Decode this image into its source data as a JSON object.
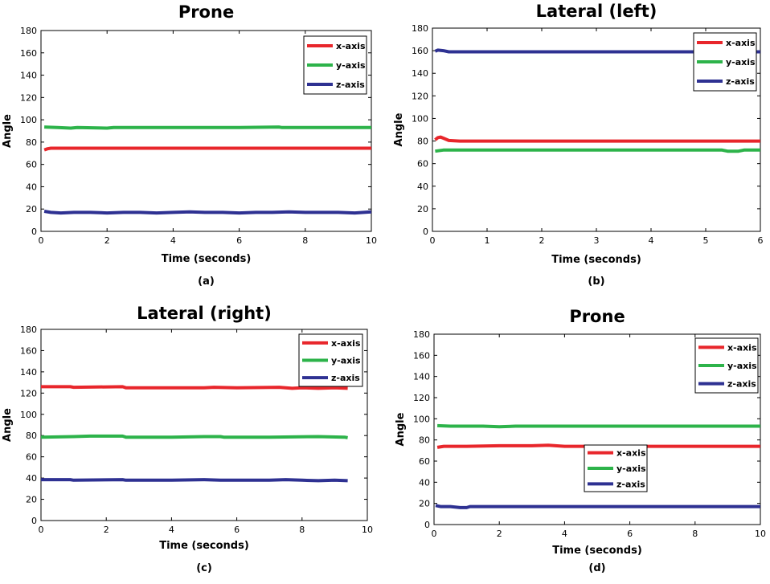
{
  "colors": {
    "x": "#e8262b",
    "y": "#2db34a",
    "z": "#2e3192"
  },
  "chart_data": [
    {
      "type": "line",
      "panel_label": "(a)",
      "title": "Prone",
      "xlabel": "Time (seconds)",
      "ylabel": "Angle",
      "xlim": [
        0,
        10
      ],
      "ylim": [
        0,
        180
      ],
      "xticks": [
        0,
        2,
        4,
        6,
        8,
        10
      ],
      "yticks": [
        0,
        20,
        40,
        60,
        80,
        100,
        120,
        140,
        160,
        180
      ],
      "grid": false,
      "legend": {
        "placement": "top-right",
        "entries": [
          "x-axis",
          "y-axis",
          "z-axis"
        ]
      },
      "series": [
        {
          "name": "x-axis",
          "x": [
            0.1,
            0.2,
            0.3,
            0.5,
            2,
            4,
            6,
            8,
            10
          ],
          "values": [
            73,
            74,
            74.5,
            74.5,
            74.5,
            74.5,
            74.5,
            74.5,
            74.5
          ]
        },
        {
          "name": "y-axis",
          "x": [
            0.1,
            0.5,
            0.9,
            1.1,
            2,
            2.2,
            4,
            6,
            7.2,
            7.3,
            8,
            10
          ],
          "values": [
            93.5,
            93,
            92.5,
            93,
            92.5,
            93,
            93,
            93,
            93.5,
            93,
            93,
            93
          ]
        },
        {
          "name": "z-axis",
          "x": [
            0.1,
            0.3,
            0.6,
            1,
            1.5,
            2,
            2.5,
            3,
            3.5,
            4,
            4.5,
            5,
            5.5,
            6,
            6.5,
            7,
            7.5,
            8,
            8.5,
            9,
            9.5,
            10
          ],
          "values": [
            18,
            17,
            16.5,
            17,
            17,
            16.5,
            17,
            17,
            16.5,
            17,
            17.5,
            17,
            17,
            16.5,
            17,
            17,
            17.5,
            17,
            17,
            17,
            16.5,
            17.5
          ]
        }
      ]
    },
    {
      "type": "line",
      "panel_label": "(b)",
      "title": "Lateral (left)",
      "xlabel": "Time (seconds)",
      "ylabel": "Angle",
      "xlim": [
        0,
        6
      ],
      "ylim": [
        0,
        180
      ],
      "xticks": [
        0,
        1,
        2,
        3,
        4,
        5,
        6
      ],
      "yticks": [
        0,
        20,
        40,
        60,
        80,
        100,
        120,
        140,
        160,
        180
      ],
      "grid": false,
      "legend": {
        "placement": "top-right",
        "entries": [
          "x-axis",
          "y-axis",
          "z-axis"
        ]
      },
      "series": [
        {
          "name": "x-axis",
          "x": [
            0.05,
            0.1,
            0.15,
            0.2,
            0.3,
            0.5,
            1,
            2,
            3,
            4,
            5,
            6
          ],
          "values": [
            81,
            83,
            83.5,
            82.5,
            80.5,
            80,
            80,
            80,
            80,
            80,
            80,
            80
          ]
        },
        {
          "name": "y-axis",
          "x": [
            0.05,
            0.2,
            1,
            2,
            3,
            4,
            5.3,
            5.4,
            5.6,
            5.7,
            6
          ],
          "values": [
            71,
            72,
            72,
            72,
            72,
            72,
            72,
            71,
            71,
            72,
            72
          ]
        },
        {
          "name": "z-axis",
          "x": [
            0.05,
            0.1,
            0.2,
            0.3,
            0.5,
            1,
            2,
            3,
            4,
            5,
            6
          ],
          "values": [
            159.5,
            160.5,
            160,
            159,
            159,
            159,
            159,
            159,
            159,
            159,
            159
          ]
        }
      ]
    },
    {
      "type": "line",
      "panel_label": "(c)",
      "title": "Lateral (right)",
      "xlabel": "Time (seconds)",
      "ylabel": "Angle",
      "xlim": [
        0,
        10
      ],
      "ylim": [
        0,
        180
      ],
      "xticks": [
        0,
        2,
        4,
        6,
        8,
        10
      ],
      "yticks": [
        0,
        20,
        40,
        60,
        80,
        100,
        120,
        140,
        160,
        180
      ],
      "grid": false,
      "legend": {
        "placement": "top-right",
        "entries": [
          "x-axis",
          "y-axis",
          "z-axis"
        ]
      },
      "series": [
        {
          "name": "x-axis",
          "x": [
            0,
            0.9,
            1,
            2.5,
            2.6,
            4,
            5,
            5.3,
            6,
            7.3,
            7.7,
            8,
            8.5,
            9,
            9.4
          ],
          "values": [
            126,
            126,
            125.5,
            126,
            125,
            125,
            125,
            125.5,
            125,
            125.5,
            124.5,
            125,
            124.5,
            125,
            124.5
          ]
        },
        {
          "name": "y-axis",
          "x": [
            0,
            1,
            1.5,
            2.5,
            2.6,
            4,
            5,
            5.5,
            5.6,
            7,
            8.5,
            9.3,
            9.4
          ],
          "values": [
            78.5,
            79,
            79.5,
            79.5,
            78.5,
            78.5,
            79,
            79,
            78.5,
            78.5,
            79,
            78.5,
            78
          ]
        },
        {
          "name": "z-axis",
          "x": [
            0,
            0.9,
            1,
            2.5,
            2.6,
            3,
            4,
            5,
            5.5,
            6,
            7,
            7.5,
            8,
            8.5,
            9,
            9.4
          ],
          "values": [
            38.5,
            38.5,
            38,
            38.5,
            38,
            38,
            38,
            38.5,
            38,
            38,
            38,
            38.5,
            38,
            37.5,
            38,
            37.5
          ]
        }
      ]
    },
    {
      "type": "line",
      "panel_label": "(d)",
      "title": "Prone",
      "xlabel": "Time (seconds)",
      "ylabel": "Angle",
      "xlim": [
        0,
        10
      ],
      "ylim": [
        0,
        180
      ],
      "xticks": [
        0,
        2,
        4,
        6,
        8,
        10
      ],
      "yticks": [
        0,
        20,
        40,
        60,
        80,
        100,
        120,
        140,
        160,
        180
      ],
      "grid": false,
      "legend": {
        "placement": "top-right",
        "entries": [
          "x-axis",
          "y-axis",
          "z-axis"
        ]
      },
      "legend_secondary": {
        "placement": "center",
        "entries": [
          "x-axis",
          "y-axis",
          "z-axis"
        ]
      },
      "series": [
        {
          "name": "x-axis",
          "x": [
            0.1,
            0.3,
            1,
            2,
            3,
            3.5,
            4,
            6,
            8,
            10
          ],
          "values": [
            73,
            74,
            74,
            74.5,
            74.5,
            75,
            74,
            74,
            74,
            74
          ]
        },
        {
          "name": "y-axis",
          "x": [
            0.1,
            0.5,
            1.5,
            2,
            2.5,
            4,
            6,
            8,
            10
          ],
          "values": [
            93.5,
            93,
            93,
            92.5,
            93,
            93,
            93,
            93,
            93
          ]
        },
        {
          "name": "z-axis",
          "x": [
            0.05,
            0.2,
            0.5,
            0.8,
            1,
            1.1,
            2,
            4,
            6,
            8,
            10
          ],
          "values": [
            18,
            17,
            17,
            16,
            16,
            17,
            17,
            17,
            17,
            17,
            17
          ]
        }
      ]
    }
  ]
}
